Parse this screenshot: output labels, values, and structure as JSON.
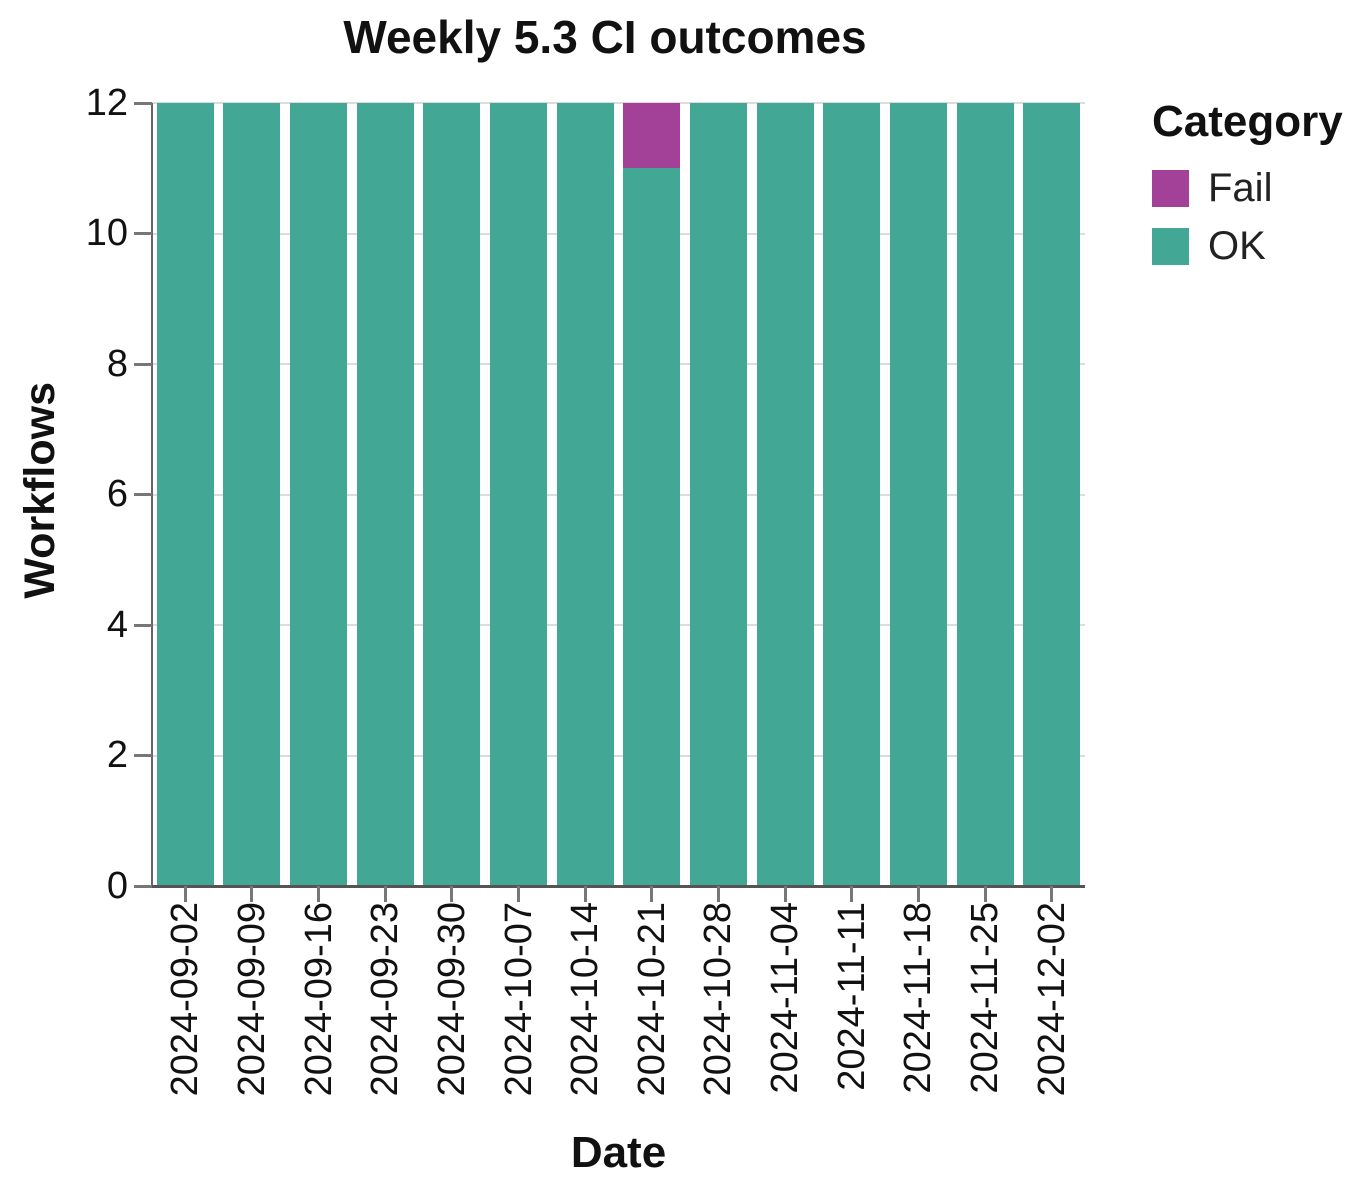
{
  "chart_data": {
    "type": "bar",
    "stacked": true,
    "title": "Weekly 5.3 CI outcomes",
    "xlabel": "Date",
    "ylabel": "Workflows",
    "categories": [
      "2024-09-02",
      "2024-09-09",
      "2024-09-16",
      "2024-09-23",
      "2024-09-30",
      "2024-10-07",
      "2024-10-14",
      "2024-10-21",
      "2024-10-28",
      "2024-11-04",
      "2024-11-11",
      "2024-11-18",
      "2024-11-25",
      "2024-12-02"
    ],
    "series": [
      {
        "name": "Fail",
        "color": "#a34098",
        "values": [
          0,
          0,
          0,
          0,
          0,
          0,
          0,
          1,
          0,
          0,
          0,
          0,
          0,
          0
        ]
      },
      {
        "name": "OK",
        "color": "#43a795",
        "values": [
          12,
          12,
          12,
          12,
          12,
          12,
          12,
          11,
          12,
          12,
          12,
          12,
          12,
          12
        ]
      }
    ],
    "stack_order_bottom_to_top": [
      "OK",
      "Fail"
    ],
    "ylim": [
      0,
      12
    ],
    "yticks": [
      0,
      2,
      4,
      6,
      8,
      10,
      12
    ],
    "grid": true,
    "legend": {
      "title": "Category",
      "position": "right",
      "entries": [
        "Fail",
        "OK"
      ]
    }
  },
  "colors": {
    "grid": "#dcdcdc",
    "spine": "#555555",
    "tick": "#777777",
    "text": "#111111"
  }
}
